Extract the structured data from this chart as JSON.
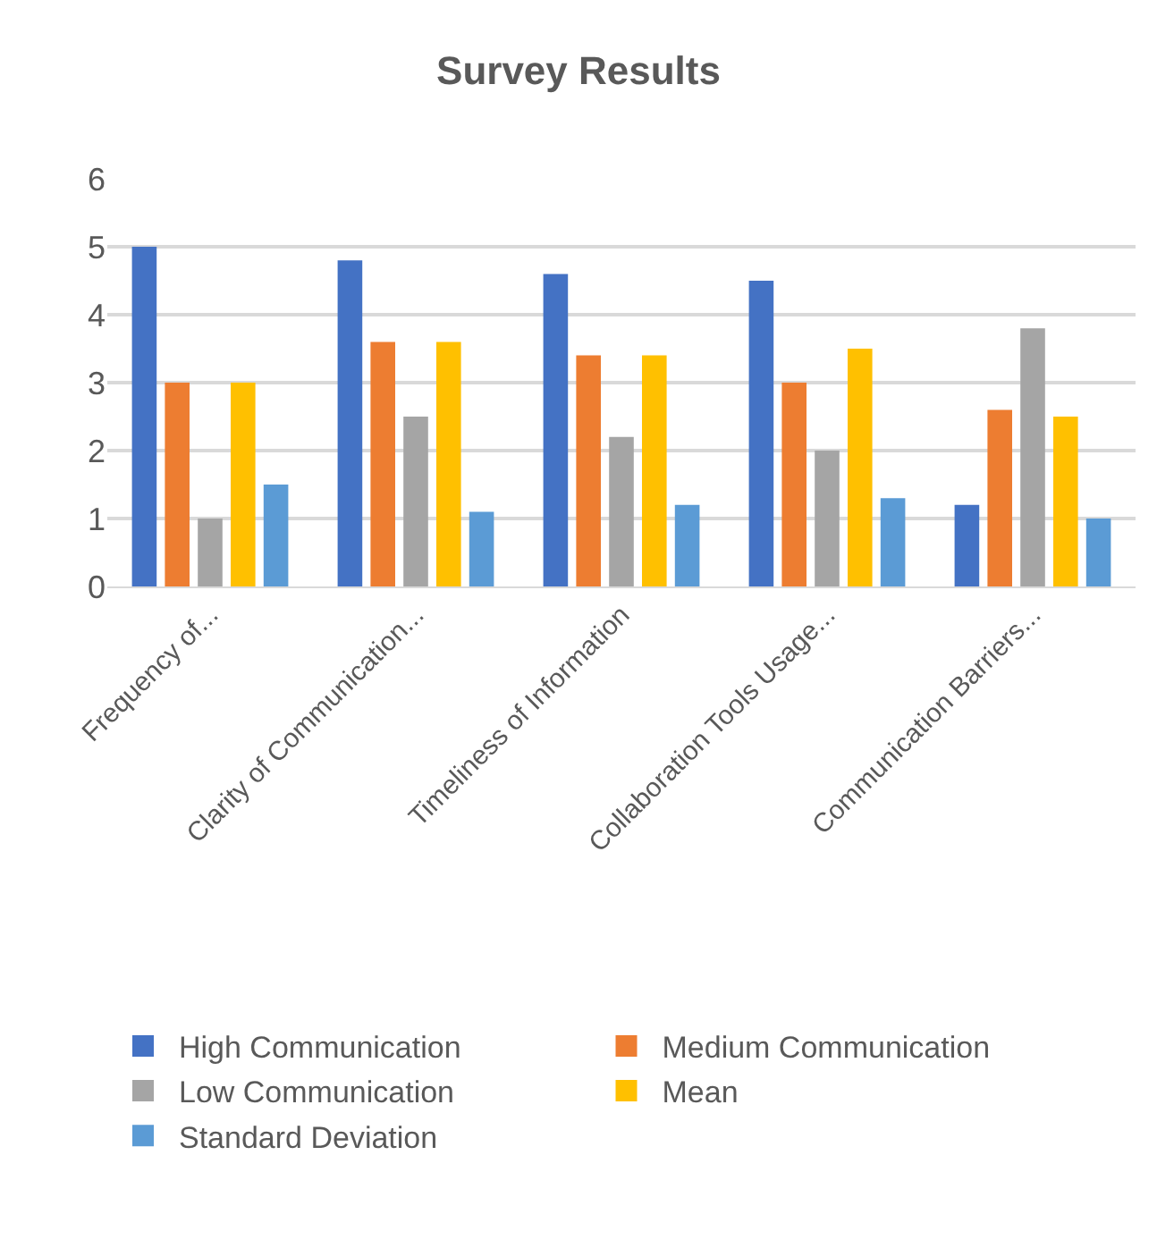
{
  "chart_data": {
    "type": "bar",
    "title": "Survey Results",
    "categories": [
      "Frequency of...",
      "Clarity of Communication...",
      "Timeliness of Information",
      "Collaboration Tools Usage...",
      "Communication Barriers..."
    ],
    "series": [
      {
        "name": "High Communication",
        "color": "#4472c4",
        "values": [
          5,
          4.8,
          4.6,
          4.5,
          1.2
        ]
      },
      {
        "name": "Medium Communication",
        "color": "#ed7d31",
        "values": [
          3,
          3.6,
          3.4,
          3,
          2.6
        ]
      },
      {
        "name": "Low Communication",
        "color": "#a5a5a5",
        "values": [
          1,
          2.5,
          2.2,
          2,
          3.8
        ]
      },
      {
        "name": "Mean",
        "color": "#ffc000",
        "values": [
          3,
          3.6,
          3.4,
          3.5,
          2.5
        ]
      },
      {
        "name": "Standard Deviation",
        "color": "#5b9bd5",
        "values": [
          1.5,
          1.1,
          1.2,
          1.3,
          1
        ]
      }
    ],
    "ylim": [
      0,
      6
    ],
    "yticks": [
      0,
      1,
      2,
      3,
      4,
      5,
      6
    ],
    "grid": "y",
    "legend": "bottom"
  }
}
